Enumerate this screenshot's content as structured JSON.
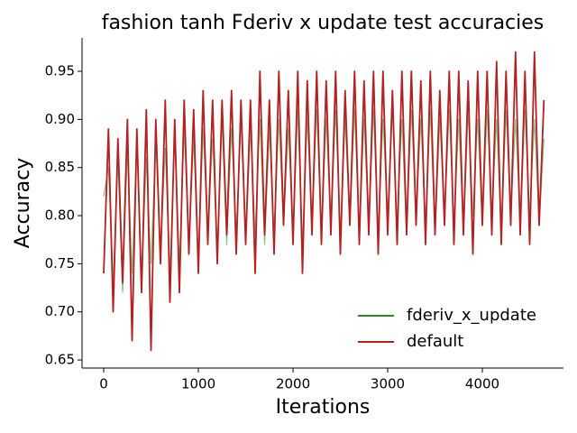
{
  "chart_data": {
    "type": "line",
    "title": "fashion tanh Fderiv x update test accuracies",
    "x_label": "Iterations",
    "y_label": "Accuracy",
    "x": [
      0,
      50,
      100,
      150,
      200,
      250,
      300,
      350,
      400,
      450,
      500,
      550,
      600,
      650,
      700,
      750,
      800,
      850,
      900,
      950,
      1000,
      1050,
      1100,
      1150,
      1200,
      1250,
      1300,
      1350,
      1400,
      1450,
      1500,
      1550,
      1600,
      1650,
      1700,
      1750,
      1800,
      1850,
      1900,
      1950,
      2000,
      2050,
      2100,
      2150,
      2200,
      2250,
      2300,
      2350,
      2400,
      2450,
      2500,
      2550,
      2600,
      2650,
      2700,
      2750,
      2800,
      2850,
      2900,
      2950,
      3000,
      3050,
      3100,
      3150,
      3200,
      3250,
      3300,
      3350,
      3400,
      3450,
      3500,
      3550,
      3600,
      3650,
      3700,
      3750,
      3800,
      3850,
      3900,
      3950,
      4000,
      4050,
      4100,
      4150,
      4200,
      4250,
      4300,
      4350,
      4400,
      4450,
      4500,
      4550,
      4600,
      4650
    ],
    "series": [
      {
        "name": "fderiv_x_update",
        "color": "#2a8a2a",
        "values": [
          0.82,
          0.85,
          0.73,
          0.86,
          0.72,
          0.87,
          0.74,
          0.88,
          0.73,
          0.86,
          0.75,
          0.88,
          0.76,
          0.87,
          0.74,
          0.88,
          0.75,
          0.89,
          0.77,
          0.88,
          0.75,
          0.89,
          0.78,
          0.88,
          0.76,
          0.9,
          0.77,
          0.89,
          0.78,
          0.9,
          0.77,
          0.89,
          0.78,
          0.9,
          0.77,
          0.89,
          0.78,
          0.9,
          0.79,
          0.89,
          0.78,
          0.91,
          0.77,
          0.9,
          0.79,
          0.91,
          0.78,
          0.9,
          0.79,
          0.91,
          0.78,
          0.9,
          0.79,
          0.91,
          0.78,
          0.9,
          0.79,
          0.91,
          0.78,
          0.9,
          0.8,
          0.91,
          0.79,
          0.9,
          0.78,
          0.91,
          0.8,
          0.9,
          0.79,
          0.91,
          0.78,
          0.9,
          0.8,
          0.91,
          0.79,
          0.9,
          0.78,
          0.91,
          0.8,
          0.9,
          0.79,
          0.91,
          0.8,
          0.9,
          0.78,
          0.91,
          0.8,
          0.9,
          0.79,
          0.91,
          0.8,
          0.9,
          0.79,
          0.88
        ]
      },
      {
        "name": "default",
        "color": "#b22222",
        "values": [
          0.74,
          0.89,
          0.7,
          0.88,
          0.73,
          0.9,
          0.67,
          0.89,
          0.72,
          0.91,
          0.66,
          0.9,
          0.75,
          0.92,
          0.71,
          0.9,
          0.72,
          0.92,
          0.76,
          0.91,
          0.74,
          0.93,
          0.77,
          0.92,
          0.75,
          0.92,
          0.78,
          0.93,
          0.76,
          0.92,
          0.77,
          0.92,
          0.74,
          0.95,
          0.78,
          0.92,
          0.76,
          0.95,
          0.79,
          0.93,
          0.77,
          0.95,
          0.74,
          0.94,
          0.78,
          0.95,
          0.77,
          0.94,
          0.78,
          0.95,
          0.76,
          0.93,
          0.79,
          0.95,
          0.77,
          0.94,
          0.78,
          0.95,
          0.76,
          0.95,
          0.78,
          0.93,
          0.77,
          0.95,
          0.78,
          0.95,
          0.79,
          0.94,
          0.77,
          0.95,
          0.78,
          0.93,
          0.79,
          0.95,
          0.77,
          0.95,
          0.78,
          0.94,
          0.76,
          0.95,
          0.79,
          0.95,
          0.78,
          0.96,
          0.77,
          0.95,
          0.79,
          0.97,
          0.78,
          0.95,
          0.77,
          0.97,
          0.79,
          0.92
        ]
      }
    ],
    "xlim": [
      -229,
      4857
    ],
    "ylim": [
      0.6416,
      0.9847
    ],
    "xticks": [
      0,
      1000,
      2000,
      3000,
      4000
    ],
    "yticks": [
      0.65,
      {
        "value": 0.7,
        "label": "0.70"
      },
      0.75,
      {
        "value": 0.8,
        "label": "0.80"
      },
      0.85,
      {
        "value": 0.9,
        "label": "0.90"
      },
      0.95
    ],
    "grid": false,
    "legend": "lower right"
  }
}
